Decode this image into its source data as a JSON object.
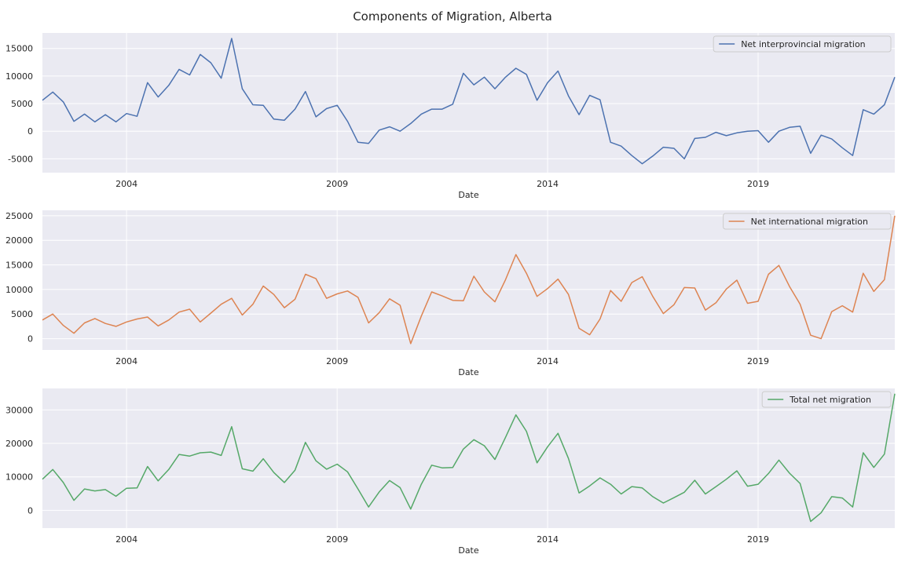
{
  "figure_title": "Components of Migration, Alberta",
  "chart_data": [
    {
      "type": "line",
      "title": "",
      "xlabel": "Date",
      "ylabel": "",
      "x_start": "2002-01-01",
      "x_step_months": 3,
      "xlim": [
        "2002-01-01",
        "2022-04-01"
      ],
      "ylim": [
        -7500,
        17800
      ],
      "x_ticks": [
        "2004",
        "2009",
        "2014",
        "2019"
      ],
      "y_ticks": [
        -5000,
        0,
        5000,
        10000,
        15000
      ],
      "grid": true,
      "legend_position": "top-right",
      "series": [
        {
          "name": "Net interprovincial migration",
          "color": "#4c72b0",
          "values": [
            5600,
            7100,
            5300,
            1800,
            3100,
            1700,
            3000,
            1700,
            3200,
            2700,
            8800,
            6200,
            8300,
            11200,
            10200,
            13900,
            12400,
            9600,
            16800,
            7700,
            4800,
            4700,
            2200,
            2000,
            4000,
            7200,
            2600,
            4100,
            4700,
            1800,
            -2000,
            -2200,
            200,
            800,
            0,
            1400,
            3100,
            4000,
            4000,
            4900,
            10500,
            8400,
            9800,
            7700,
            9800,
            11400,
            10300,
            5600,
            8800,
            10900,
            6400,
            3000,
            6500,
            5700,
            -2000,
            -2700,
            -4400,
            -5900,
            -4500,
            -2900,
            -3100,
            -5000,
            -1300,
            -1100,
            -200,
            -800,
            -300,
            0,
            100,
            -2000,
            0,
            700,
            900,
            -4000,
            -700,
            -1400,
            -3000,
            -4400,
            3900,
            3100,
            4800,
            9800
          ]
        }
      ]
    },
    {
      "type": "line",
      "title": "",
      "xlabel": "Date",
      "ylabel": "",
      "x_start": "2002-01-01",
      "x_step_months": 3,
      "xlim": [
        "2002-01-01",
        "2022-04-01"
      ],
      "ylim": [
        -2300,
        26100
      ],
      "x_ticks": [
        "2004",
        "2009",
        "2014",
        "2019"
      ],
      "y_ticks": [
        0,
        5000,
        10000,
        15000,
        20000,
        25000
      ],
      "grid": true,
      "legend_position": "top-right",
      "series": [
        {
          "name": "Net international migration",
          "color": "#dd8452",
          "values": [
            3800,
            5000,
            2700,
            1100,
            3200,
            4100,
            3100,
            2500,
            3400,
            4000,
            4400,
            2600,
            3800,
            5400,
            6000,
            3400,
            5200,
            7000,
            8200,
            4800,
            7000,
            10700,
            9000,
            6300,
            8000,
            13100,
            12200,
            8200,
            9100,
            9700,
            8400,
            3200,
            5300,
            8100,
            6800,
            -1000,
            4600,
            9500,
            8700,
            7800,
            7700,
            12700,
            9500,
            7500,
            12000,
            17100,
            13300,
            8600,
            10200,
            12100,
            9000,
            2100,
            800,
            4000,
            9800,
            7600,
            11400,
            12600,
            8600,
            5100,
            6900,
            10400,
            10300,
            5800,
            7300,
            10100,
            11900,
            7200,
            7600,
            13100,
            14900,
            10600,
            7000,
            700,
            0,
            5500,
            6700,
            5400,
            13300,
            9600,
            12000,
            25000
          ]
        }
      ]
    },
    {
      "type": "line",
      "title": "",
      "xlabel": "Date",
      "ylabel": "",
      "x_start": "2002-01-01",
      "x_step_months": 3,
      "xlim": [
        "2002-01-01",
        "2022-04-01"
      ],
      "ylim": [
        -5300,
        36400
      ],
      "x_ticks": [
        "2004",
        "2009",
        "2014",
        "2019"
      ],
      "y_ticks": [
        0,
        10000,
        20000,
        30000
      ],
      "grid": true,
      "legend_position": "top-right",
      "series": [
        {
          "name": "Total net migration",
          "color": "#55a868",
          "values": [
            9300,
            12200,
            8300,
            3000,
            6400,
            5800,
            6200,
            4200,
            6600,
            6700,
            13100,
            8800,
            12200,
            16700,
            16200,
            17200,
            17400,
            16400,
            25000,
            12400,
            11700,
            15400,
            11300,
            8300,
            12000,
            20300,
            14800,
            12300,
            13800,
            11500,
            6400,
            1000,
            5500,
            8900,
            6800,
            400,
            7800,
            13500,
            12700,
            12800,
            18300,
            21100,
            19300,
            15200,
            21800,
            28500,
            23600,
            14200,
            19000,
            23000,
            15500,
            5200,
            7300,
            9700,
            7800,
            4900,
            7100,
            6700,
            4100,
            2200,
            3800,
            5400,
            9000,
            4900,
            7100,
            9300,
            11800,
            7200,
            7800,
            11000,
            15000,
            11100,
            8000,
            -3300,
            -700,
            4100,
            3700,
            1000,
            17200,
            12800,
            16800,
            34800
          ]
        }
      ]
    }
  ]
}
